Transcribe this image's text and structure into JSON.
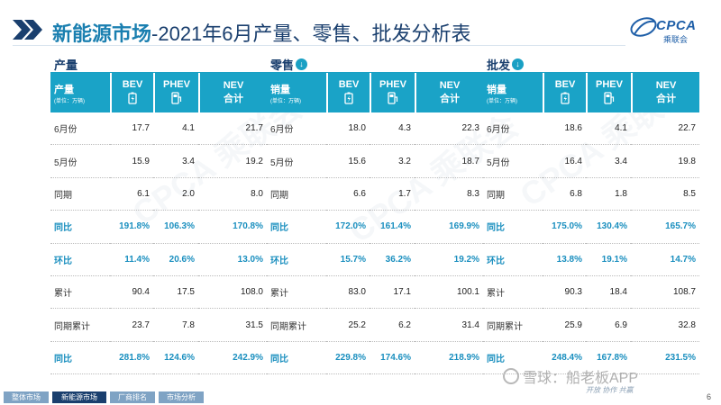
{
  "header": {
    "title_highlight": "新能源市场",
    "title_rest": "-2021年6月产量、零售、批发分析表",
    "logo_text": "CPCA",
    "logo_sub": "乘联会"
  },
  "colors": {
    "accent": "#1aa3c7",
    "navy": "#1a3f6e",
    "emphasis": "#1a8fbf"
  },
  "panels": [
    {
      "title": "产量",
      "corner_label": "产量",
      "corner_unit": "(单位：万辆)",
      "has_icon": false,
      "columns": [
        {
          "name": "BEV",
          "icon": "battery-icon"
        },
        {
          "name": "PHEV",
          "icon": "plug-icon"
        },
        {
          "name": "NEV",
          "sub": "合计"
        }
      ],
      "rows": [
        {
          "label": "6月份",
          "values": [
            "17.7",
            "4.1",
            "21.7"
          ]
        },
        {
          "label": "5月份",
          "values": [
            "15.9",
            "3.4",
            "19.2"
          ]
        },
        {
          "label": "同期",
          "values": [
            "6.1",
            "2.0",
            "8.0"
          ]
        },
        {
          "label": "同比",
          "values": [
            "191.8%",
            "106.3%",
            "170.8%"
          ],
          "em": true
        },
        {
          "label": "环比",
          "values": [
            "11.4%",
            "20.6%",
            "13.0%"
          ],
          "em": true
        },
        {
          "label": "累计",
          "values": [
            "90.4",
            "17.5",
            "108.0"
          ]
        },
        {
          "label": "同期累计",
          "values": [
            "23.7",
            "7.8",
            "31.5"
          ]
        },
        {
          "label": "同比",
          "values": [
            "281.8%",
            "124.6%",
            "242.9%"
          ],
          "em": true
        }
      ]
    },
    {
      "title": "零售",
      "corner_label": "销量",
      "corner_unit": "(单位：万辆)",
      "has_icon": true,
      "columns": [
        {
          "name": "BEV",
          "icon": "battery-icon"
        },
        {
          "name": "PHEV",
          "icon": "plug-icon"
        },
        {
          "name": "NEV",
          "sub": "合计"
        }
      ],
      "rows": [
        {
          "label": "6月份",
          "values": [
            "18.0",
            "4.3",
            "22.3"
          ]
        },
        {
          "label": "5月份",
          "values": [
            "15.6",
            "3.2",
            "18.7"
          ]
        },
        {
          "label": "同期",
          "values": [
            "6.6",
            "1.7",
            "8.3"
          ]
        },
        {
          "label": "同比",
          "values": [
            "172.0%",
            "161.4%",
            "169.9%"
          ],
          "em": true
        },
        {
          "label": "环比",
          "values": [
            "15.7%",
            "36.2%",
            "19.2%"
          ],
          "em": true
        },
        {
          "label": "累计",
          "values": [
            "83.0",
            "17.1",
            "100.1"
          ]
        },
        {
          "label": "同期累计",
          "values": [
            "25.2",
            "6.2",
            "31.4"
          ]
        },
        {
          "label": "同比",
          "values": [
            "229.8%",
            "174.6%",
            "218.9%"
          ],
          "em": true
        }
      ]
    },
    {
      "title": "批发",
      "corner_label": "销量",
      "corner_unit": "(单位：万辆)",
      "has_icon": true,
      "columns": [
        {
          "name": "BEV",
          "icon": "battery-icon"
        },
        {
          "name": "PHEV",
          "icon": "plug-icon"
        },
        {
          "name": "NEV",
          "sub": "合计"
        }
      ],
      "rows": [
        {
          "label": "6月份",
          "values": [
            "18.6",
            "4.1",
            "22.7"
          ]
        },
        {
          "label": "5月份",
          "values": [
            "16.4",
            "3.4",
            "19.8"
          ]
        },
        {
          "label": "同期",
          "values": [
            "6.8",
            "1.8",
            "8.5"
          ]
        },
        {
          "label": "同比",
          "values": [
            "175.0%",
            "130.4%",
            "165.7%"
          ],
          "em": true
        },
        {
          "label": "环比",
          "values": [
            "13.8%",
            "19.1%",
            "14.7%"
          ],
          "em": true
        },
        {
          "label": "累计",
          "values": [
            "90.3",
            "18.4",
            "108.7"
          ]
        },
        {
          "label": "同期累计",
          "values": [
            "25.9",
            "6.9",
            "32.8"
          ]
        },
        {
          "label": "同比",
          "values": [
            "248.4%",
            "167.8%",
            "231.5%"
          ],
          "em": true
        }
      ]
    }
  ],
  "footer": {
    "nav": [
      "整体市场",
      "新能源市场",
      "厂商排名",
      "市场分析"
    ],
    "slogan": "开放 协作 共赢",
    "page": "6",
    "credit": "雪球：船老板APP"
  }
}
